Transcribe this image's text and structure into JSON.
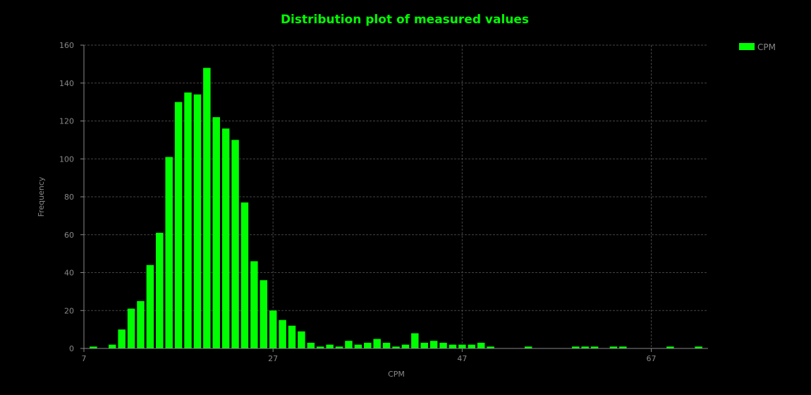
{
  "colors": {
    "background": "#000000",
    "bar": "#00ff00",
    "title": "#00ff00",
    "text": "#888888",
    "grid": "#444444",
    "axis": "#888888"
  },
  "chart_data": {
    "type": "bar",
    "title": "Distribution plot of measured values",
    "xlabel": "CPM",
    "ylabel": "Frequency",
    "xlim": [
      7,
      73
    ],
    "ylim": [
      0,
      160
    ],
    "x_ticks": [
      "7",
      "27",
      "47",
      "67"
    ],
    "y_ticks": [
      "0",
      "20",
      "40",
      "60",
      "80",
      "100",
      "120",
      "140",
      "160"
    ],
    "grid": true,
    "legend": {
      "position": "top-right",
      "entries": [
        "CPM"
      ]
    },
    "series": [
      {
        "name": "CPM",
        "x": [
          8,
          10,
          11,
          12,
          13,
          14,
          15,
          16,
          17,
          18,
          19,
          20,
          21,
          22,
          23,
          24,
          25,
          26,
          27,
          28,
          29,
          30,
          31,
          32,
          33,
          34,
          35,
          36,
          37,
          38,
          39,
          40,
          41,
          42,
          43,
          44,
          45,
          46,
          47,
          48,
          49,
          50,
          54,
          59,
          60,
          61,
          63,
          64,
          69,
          72
        ],
        "values": [
          1,
          2,
          10,
          21,
          25,
          44,
          61,
          101,
          130,
          135,
          134,
          148,
          122,
          116,
          110,
          77,
          46,
          36,
          20,
          15,
          12,
          9,
          3,
          1,
          2,
          1,
          4,
          2,
          3,
          5,
          3,
          1,
          2,
          8,
          3,
          4,
          3,
          2,
          2,
          2,
          3,
          1,
          1,
          1,
          1,
          1,
          1,
          1,
          1,
          1
        ]
      }
    ]
  }
}
